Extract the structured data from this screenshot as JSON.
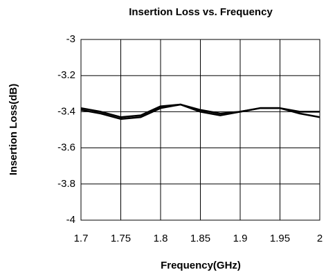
{
  "chart_data": {
    "type": "line",
    "title": "Insertion Loss vs. Frequency",
    "x_label": "Frequency(GHz)",
    "y_label": "Insertion Loss(dB)",
    "x": [
      1.7,
      1.725,
      1.75,
      1.775,
      1.8,
      1.825,
      1.85,
      1.875,
      1.9,
      1.925,
      1.95,
      1.975,
      2.0
    ],
    "series": [
      {
        "color": "#000000",
        "values": [
          -3.38,
          -3.4,
          -3.43,
          -3.42,
          -3.37,
          -3.36,
          -3.39,
          -3.41,
          -3.4,
          -3.38,
          -3.38,
          -3.4,
          -3.4
        ]
      },
      {
        "color": "#000000",
        "values": [
          -3.39,
          -3.41,
          -3.44,
          -3.43,
          -3.38,
          -3.36,
          -3.4,
          -3.42,
          -3.4,
          -3.38,
          -3.38,
          -3.41,
          -3.43
        ]
      }
    ],
    "xlim": [
      1.7,
      2.0
    ],
    "ylim": [
      -4,
      -3
    ],
    "xticks": [
      1.7,
      1.75,
      1.8,
      1.85,
      1.9,
      1.95,
      2
    ],
    "yticks": [
      -3,
      -3.2,
      -3.4,
      -3.6,
      -3.8,
      -4
    ],
    "grid": true
  }
}
